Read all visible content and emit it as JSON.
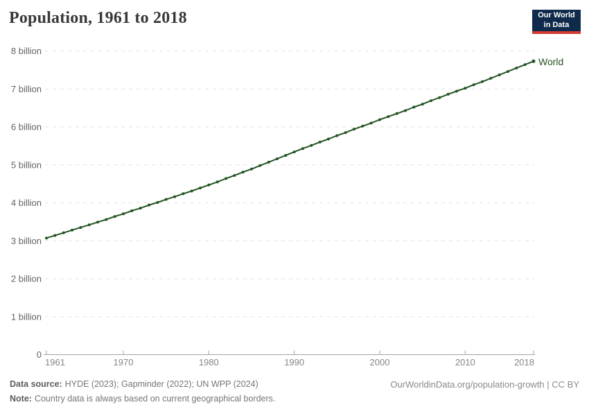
{
  "logo": {
    "line1": "Our World",
    "line2": "in Data"
  },
  "chart_data": {
    "type": "line",
    "title": "Population, 1961 to 2018",
    "xlabel": "",
    "ylabel": "",
    "unit": "billion",
    "xlim": [
      1961,
      2018
    ],
    "ylim": [
      0,
      8
    ],
    "grid": "horizontal-dashed",
    "legend_position": "end-of-line",
    "x_ticks": [
      1961,
      1970,
      1980,
      1990,
      2000,
      2010,
      2018
    ],
    "y_ticks": [
      0,
      1,
      2,
      3,
      4,
      5,
      6,
      7,
      8
    ],
    "y_tick_labels": [
      "0",
      "1 billion",
      "2 billion",
      "3 billion",
      "4 billion",
      "5 billion",
      "6 billion",
      "7 billion",
      "8 billion"
    ],
    "x": [
      1961,
      1962,
      1963,
      1964,
      1965,
      1966,
      1967,
      1968,
      1969,
      1970,
      1971,
      1972,
      1973,
      1974,
      1975,
      1976,
      1977,
      1978,
      1979,
      1980,
      1981,
      1982,
      1983,
      1984,
      1985,
      1986,
      1987,
      1988,
      1989,
      1990,
      1991,
      1992,
      1993,
      1994,
      1995,
      1996,
      1997,
      1998,
      1999,
      2000,
      2001,
      2002,
      2003,
      2004,
      2005,
      2006,
      2007,
      2008,
      2009,
      2010,
      2011,
      2012,
      2013,
      2014,
      2015,
      2016,
      2017,
      2018
    ],
    "series": [
      {
        "name": "World",
        "color": "#225422",
        "marker": "dot",
        "values_unit": "billions of people",
        "values": [
          3.07,
          3.14,
          3.21,
          3.28,
          3.35,
          3.42,
          3.49,
          3.56,
          3.64,
          3.71,
          3.79,
          3.86,
          3.94,
          4.01,
          4.09,
          4.16,
          4.24,
          4.31,
          4.39,
          4.47,
          4.55,
          4.64,
          4.72,
          4.81,
          4.89,
          4.98,
          5.07,
          5.16,
          5.25,
          5.34,
          5.43,
          5.51,
          5.6,
          5.68,
          5.77,
          5.85,
          5.94,
          6.02,
          6.1,
          6.19,
          6.27,
          6.35,
          6.43,
          6.52,
          6.6,
          6.69,
          6.77,
          6.86,
          6.94,
          7.02,
          7.11,
          7.19,
          7.28,
          7.37,
          7.46,
          7.55,
          7.64,
          7.73
        ]
      }
    ]
  },
  "footer": {
    "source_label": "Data source:",
    "source_text": "HYDE (2023); Gapminder (2022); UN WPP (2024)",
    "note_label": "Note:",
    "note_text": "Country data is always based on current geographical borders.",
    "right": "OurWorldinData.org/population-growth | CC BY"
  },
  "colors": {
    "line": "#225422",
    "grid": "#e2e2e2",
    "axis": "#a3a3a3",
    "y_tick_text": "#636363",
    "x_tick_text": "#858585",
    "title_text": "#383838",
    "logo_bg": "#102a4c",
    "logo_accent": "#d23a32"
  }
}
